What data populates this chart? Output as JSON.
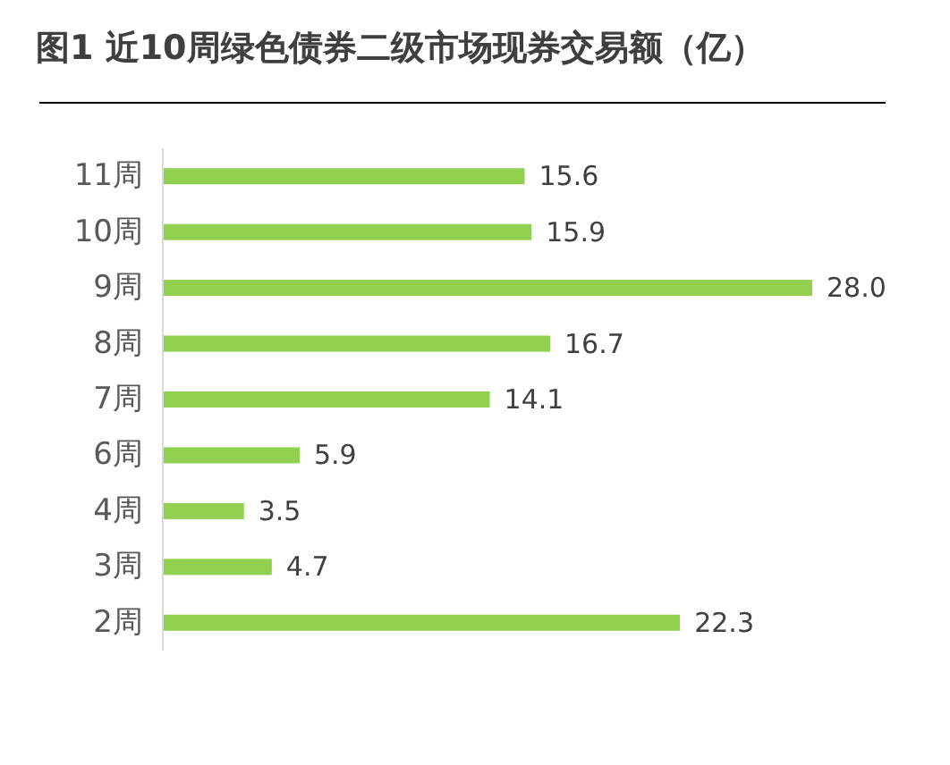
{
  "chart_data": {
    "type": "bar",
    "orientation": "horizontal",
    "title": "图1  近10周绿色债券二级市场现券交易额（亿）",
    "categories": [
      "11周",
      "10周",
      "9周",
      "8周",
      "7周",
      "6周",
      "4周",
      "3周",
      "2周"
    ],
    "values": [
      15.6,
      15.9,
      28.0,
      16.7,
      14.1,
      5.9,
      3.5,
      4.7,
      22.3
    ],
    "value_labels": [
      "15.6",
      "15.9",
      "28.0",
      "16.7",
      "14.1",
      "5.9",
      "3.5",
      "4.7",
      "22.3"
    ],
    "color": "#92d050"
  }
}
